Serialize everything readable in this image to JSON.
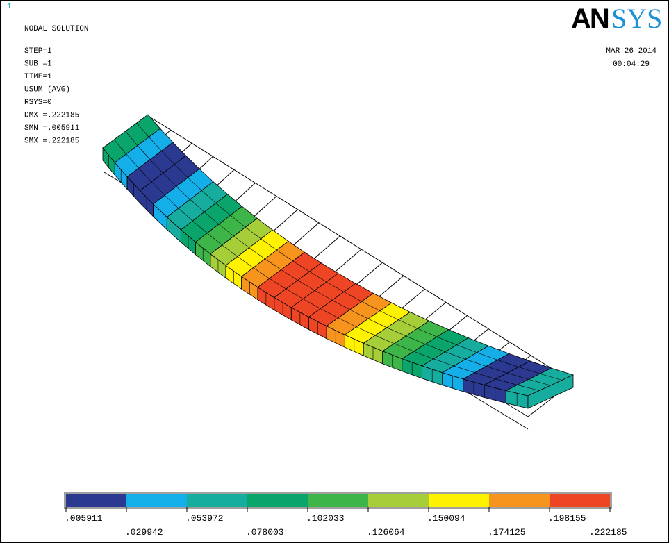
{
  "window_number": "1",
  "title": "NODAL SOLUTION",
  "info": [
    "STEP=1",
    "SUB =1",
    "TIME=1",
    "USUM      (AVG)",
    "RSYS=0",
    "DMX =.222185",
    "SMN =.005911",
    "SMX =.222185"
  ],
  "logo": {
    "bold": "AN",
    "light": "SYS"
  },
  "date": "MAR 26 2014",
  "time": "00:04:29",
  "legend": {
    "colors": [
      "#2b3990",
      "#14aee8",
      "#16ad9f",
      "#0aa56b",
      "#3db549",
      "#a6ce39",
      "#fff200",
      "#f7941d",
      "#ee4524"
    ],
    "labels": [
      ".005911",
      ".029942",
      ".053972",
      ".078003",
      ".102033",
      ".126064",
      ".150094",
      ".174125",
      ".198155",
      ".222185"
    ]
  }
}
